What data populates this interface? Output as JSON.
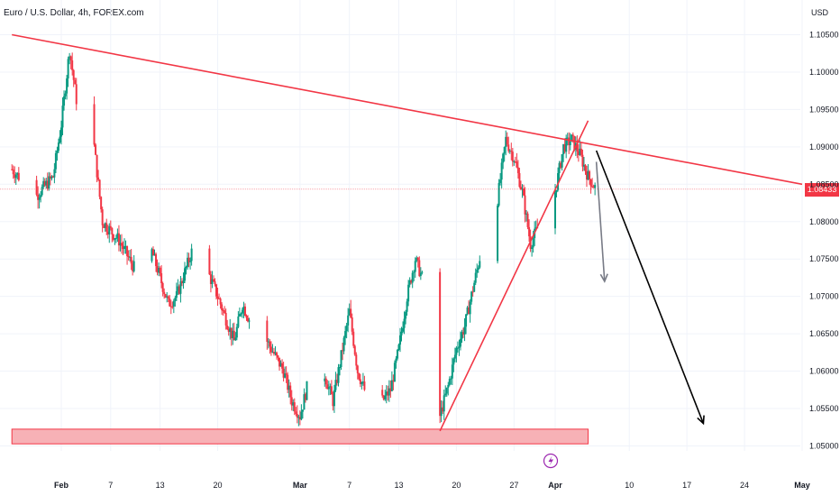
{
  "header": {
    "title": "Euro / U.S. Dollar, 4h, FOREX.com",
    "currency": "USD"
  },
  "price_label": "1.08433",
  "colors": {
    "up": "#089981",
    "down": "#f23645",
    "trendline": "#f23645",
    "support_fill": "#f7b1b6",
    "arrow": "#000000",
    "arrow_gray": "#787b86"
  },
  "icons": [
    "lightning-icon"
  ],
  "chart_data": {
    "type": "candlestick",
    "title": "Euro / U.S. Dollar, 4h, FOREX.com",
    "xlabel": "",
    "ylabel": "USD",
    "ylim": [
      1.0465,
      1.1075
    ],
    "y_ticks": [
      "1.10500",
      "1.10000",
      "1.09500",
      "1.09000",
      "1.08500",
      "1.08000",
      "1.07500",
      "1.07000",
      "1.06500",
      "1.06000",
      "1.05500",
      "1.05000"
    ],
    "x_ticks": [
      {
        "label": "Feb",
        "date": "2024-02-01",
        "bold": true
      },
      {
        "label": "7",
        "date": "2024-02-07",
        "bold": false
      },
      {
        "label": "13",
        "date": "2024-02-13",
        "bold": false
      },
      {
        "label": "20",
        "date": "2024-02-20",
        "bold": false
      },
      {
        "label": "Mar",
        "date": "2024-03-01",
        "bold": true
      },
      {
        "label": "7",
        "date": "2024-03-07",
        "bold": false
      },
      {
        "label": "13",
        "date": "2024-03-13",
        "bold": false
      },
      {
        "label": "20",
        "date": "2024-03-20",
        "bold": false
      },
      {
        "label": "27",
        "date": "2024-03-27",
        "bold": false
      },
      {
        "label": "Apr",
        "date": "2024-04-01",
        "bold": true
      },
      {
        "label": "10",
        "date": "2024-04-10",
        "bold": false
      },
      {
        "label": "17",
        "date": "2024-04-17",
        "bold": false
      },
      {
        "label": "24",
        "date": "2024-04-24",
        "bold": false
      },
      {
        "label": "May",
        "date": "2024-05-01",
        "bold": true
      }
    ],
    "last_price": 1.08433,
    "path_anchors": [
      [
        "2024-01-26",
        1.087
      ],
      [
        "2024-01-29",
        1.0835
      ],
      [
        "2024-01-31",
        1.086
      ],
      [
        "2024-02-01",
        1.093
      ],
      [
        "2024-02-02",
        1.103
      ],
      [
        "2024-02-03",
        1.095
      ],
      [
        "2024-02-05",
        1.09
      ],
      [
        "2024-02-06",
        1.08
      ],
      [
        "2024-02-08",
        1.0775
      ],
      [
        "2024-02-10",
        1.0735
      ],
      [
        "2024-02-12",
        1.076
      ],
      [
        "2024-02-14",
        1.069
      ],
      [
        "2024-02-15",
        1.07
      ],
      [
        "2024-02-17",
        1.0765
      ],
      [
        "2024-02-18",
        1.0755
      ],
      [
        "2024-02-20",
        1.07
      ],
      [
        "2024-02-22",
        1.064
      ],
      [
        "2024-02-23",
        1.069
      ],
      [
        "2024-02-24",
        1.0665
      ],
      [
        "2024-02-26",
        1.064
      ],
      [
        "2024-02-28",
        1.06
      ],
      [
        "2024-02-29",
        1.056
      ],
      [
        "2024-03-01",
        1.054
      ],
      [
        "2024-03-03",
        1.063
      ],
      [
        "2024-03-05",
        1.056
      ],
      [
        "2024-03-06",
        1.062
      ],
      [
        "2024-03-07",
        1.068
      ],
      [
        "2024-03-08",
        1.06
      ],
      [
        "2024-03-09",
        1.057
      ],
      [
        "2024-03-10",
        1.0545
      ],
      [
        "2024-03-12",
        1.0575
      ],
      [
        "2024-03-13",
        1.063
      ],
      [
        "2024-03-14",
        1.07
      ],
      [
        "2024-03-15",
        1.075
      ],
      [
        "2024-03-16",
        1.072
      ],
      [
        "2024-03-17",
        1.076
      ],
      [
        "2024-03-18",
        1.054
      ],
      [
        "2024-03-19",
        1.058
      ],
      [
        "2024-03-20",
        1.063
      ],
      [
        "2024-03-21",
        1.066
      ],
      [
        "2024-03-22",
        1.071
      ],
      [
        "2024-03-23",
        1.076
      ],
      [
        "2024-03-24",
        1.078
      ],
      [
        "2024-03-25",
        1.083
      ],
      [
        "2024-03-26",
        1.091
      ],
      [
        "2024-03-27",
        1.0885
      ],
      [
        "2024-03-28",
        1.084
      ],
      [
        "2024-03-29",
        1.077
      ],
      [
        "2024-03-30",
        1.0795
      ],
      [
        "2024-03-31",
        1.082
      ],
      [
        "2024-04-01",
        1.084
      ],
      [
        "2024-04-02",
        1.09
      ],
      [
        "2024-04-03",
        1.091
      ],
      [
        "2024-04-04",
        1.089
      ],
      [
        "2024-04-05",
        1.086
      ],
      [
        "2024-04-06",
        1.0843
      ]
    ],
    "annotations": [
      {
        "type": "trendline",
        "name": "descending-resistance",
        "from": [
          "2024-01-26",
          1.105
        ],
        "to": [
          "2024-05-01",
          1.085
        ]
      },
      {
        "type": "trendline",
        "name": "ascending-support",
        "from": [
          "2024-03-18",
          1.052
        ],
        "to": [
          "2024-04-05",
          1.0935
        ]
      },
      {
        "type": "zone",
        "name": "support-zone",
        "x_range": [
          "2024-01-26",
          "2024-04-05"
        ],
        "y_range": [
          1.051,
          1.052
        ]
      },
      {
        "type": "horizontal-line",
        "name": "current-price-line",
        "y": 1.08433
      },
      {
        "type": "arrow",
        "name": "projection-arrow",
        "from": [
          "2024-04-06",
          1.0895
        ],
        "to": [
          "2024-04-19",
          1.053
        ]
      },
      {
        "type": "arrow",
        "name": "projection-arrow-small",
        "from": [
          "2024-04-06",
          1.088
        ],
        "to": [
          "2024-04-07",
          1.072
        ]
      }
    ]
  }
}
